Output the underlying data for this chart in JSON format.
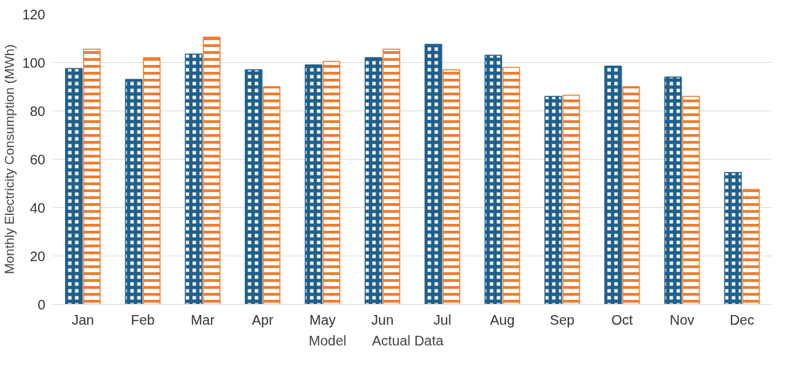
{
  "chart_data": {
    "type": "bar",
    "ylabel": "Monthly Electricity Consumption (MWh)",
    "categories": [
      "Jan",
      "Feb",
      "Mar",
      "Apr",
      "May",
      "Jun",
      "Jul",
      "Aug",
      "Sep",
      "Oct",
      "Nov",
      "Dec"
    ],
    "series": [
      {
        "name": "Model",
        "color": "#1f5f8b",
        "values": [
          97.5,
          93,
          103.5,
          97,
          99,
          102,
          107.5,
          103,
          86,
          98.5,
          94,
          54.5
        ]
      },
      {
        "name": "Actual Data",
        "color": "#ed7d31",
        "values": [
          105.5,
          102,
          110.5,
          90,
          100.5,
          105.5,
          97,
          98,
          86.5,
          90,
          86,
          47.5
        ]
      }
    ],
    "ylim": [
      0,
      120
    ],
    "yticks": [
      0,
      20,
      40,
      60,
      80,
      100,
      120
    ],
    "grid": "y",
    "legend": "bottom"
  }
}
